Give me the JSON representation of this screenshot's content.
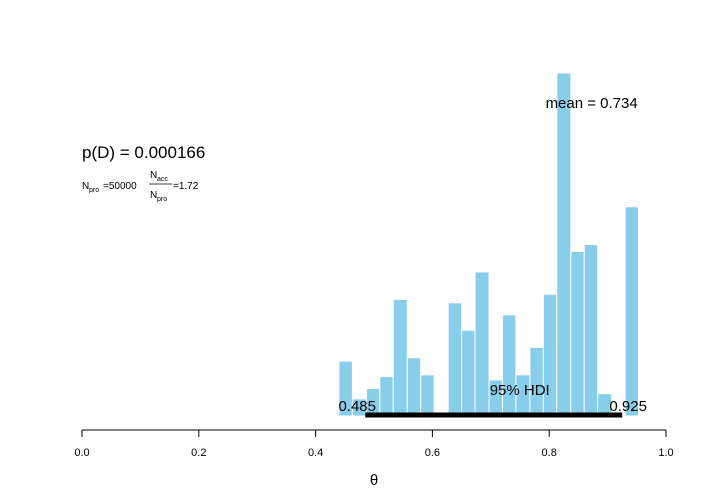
{
  "chart_data": {
    "type": "bar",
    "xlabel": "θ",
    "xlim": [
      0.0,
      1.0
    ],
    "xticks": [
      "0.0",
      "0.2",
      "0.4",
      "0.6",
      "0.8",
      "1.0"
    ],
    "bar_color": "#87CEEB",
    "bins": [
      {
        "x0": 0.44,
        "x1": 0.463,
        "count": 32
      },
      {
        "x0": 0.463,
        "x1": 0.487,
        "count": 10
      },
      {
        "x0": 0.487,
        "x1": 0.51,
        "count": 16
      },
      {
        "x0": 0.51,
        "x1": 0.533,
        "count": 23
      },
      {
        "x0": 0.533,
        "x1": 0.557,
        "count": 68
      },
      {
        "x0": 0.557,
        "x1": 0.58,
        "count": 34
      },
      {
        "x0": 0.58,
        "x1": 0.603,
        "count": 24
      },
      {
        "x0": 0.627,
        "x1": 0.65,
        "count": 66
      },
      {
        "x0": 0.65,
        "x1": 0.673,
        "count": 50
      },
      {
        "x0": 0.673,
        "x1": 0.697,
        "count": 84
      },
      {
        "x0": 0.697,
        "x1": 0.72,
        "count": 21
      },
      {
        "x0": 0.72,
        "x1": 0.743,
        "count": 59
      },
      {
        "x0": 0.743,
        "x1": 0.767,
        "count": 24
      },
      {
        "x0": 0.767,
        "x1": 0.79,
        "count": 40
      },
      {
        "x0": 0.79,
        "x1": 0.813,
        "count": 71
      },
      {
        "x0": 0.813,
        "x1": 0.837,
        "count": 200
      },
      {
        "x0": 0.837,
        "x1": 0.86,
        "count": 96
      },
      {
        "x0": 0.86,
        "x1": 0.883,
        "count": 100
      },
      {
        "x0": 0.883,
        "x1": 0.907,
        "count": 13
      },
      {
        "x0": 0.907,
        "x1": 0.93,
        "count": 0
      },
      {
        "x0": 0.93,
        "x1": 0.953,
        "count": 122
      }
    ],
    "ylim": [
      0,
      210
    ],
    "hdi": {
      "label": "95% HDI",
      "low": 0.485,
      "high": 0.925,
      "low_label": "0.485",
      "high_label": "0.925"
    },
    "mean": {
      "value": 0.734,
      "text": "mean = 0.734"
    },
    "annotations": {
      "pd_text": "p(D) = 0.000166",
      "npro_text": "N",
      "npro_sub": "pro",
      "npro_value": "=50000",
      "ratio_num": "N",
      "ratio_num_sub": "acc",
      "ratio_den": "N",
      "ratio_den_sub": "pro",
      "ratio_value": "=1.72"
    }
  }
}
